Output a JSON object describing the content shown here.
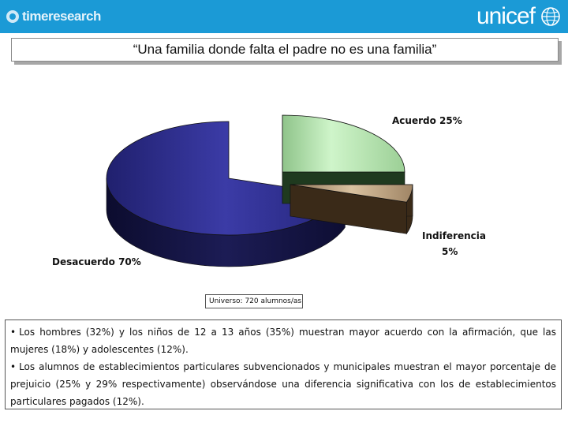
{
  "header": {
    "left_logo": "timeresearch",
    "right_logo": "unicef"
  },
  "title": "“Una familia donde falta el padre no es una familia”",
  "chart_data": {
    "type": "pie",
    "title": "“Una familia donde falta el padre no es una familia”",
    "slices": [
      {
        "label": "Acuerdo 25%",
        "value": 25,
        "color": "#b9e9b4"
      },
      {
        "label": "Indiferencia 5%",
        "value": 5,
        "color": "#c9b08e"
      },
      {
        "label": "Desacuerdo 70%",
        "value": 70,
        "color": "#2a2a8a"
      }
    ],
    "labels": {
      "acuerdo": "Acuerdo 25%",
      "indiferencia_line1": "Indiferencia",
      "indiferencia_line2": "5%",
      "desacuerdo": "Desacuerdo 70%"
    }
  },
  "universe": "Universo: 720 alumnos/as",
  "notes": [
    "Los hombres (32%) y los niños de 12 a 13 años (35%) muestran mayor acuerdo con la afirmación, que las mujeres (18%) y adolescentes (12%).",
    "Los alumnos de establecimientos particulares subvencionados y municipales muestran el mayor porcentaje de prejuicio (25% y 29% respectivamente) observándose una diferencia significativa con los de establecimientos particulares pagados (12%)."
  ],
  "bullet": "•"
}
